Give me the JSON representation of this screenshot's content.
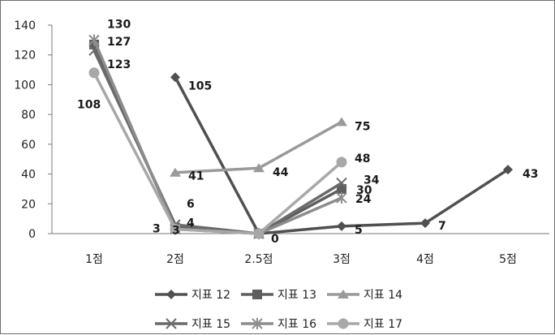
{
  "chart_data": {
    "type": "line",
    "categories": [
      "1점",
      "2점",
      "2.5점",
      "3점",
      "4점",
      "5점"
    ],
    "ylim": [
      0,
      140
    ],
    "yticks": [
      0,
      20,
      40,
      60,
      80,
      100,
      120,
      140
    ],
    "grid": false,
    "legend_position": "bottom",
    "series": [
      {
        "name": "지표 12",
        "marker": "diamond",
        "color": "#505050",
        "values": [
          null,
          105,
          0,
          5,
          7,
          43
        ]
      },
      {
        "name": "지표 13",
        "marker": "square",
        "color": "#5e5e5e",
        "values": [
          127,
          4,
          0,
          30,
          null,
          null
        ]
      },
      {
        "name": "지표 14",
        "marker": "triangle",
        "color": "#9a9a9a",
        "values": [
          null,
          41,
          44,
          75,
          null,
          null
        ]
      },
      {
        "name": "지표 15",
        "marker": "x",
        "color": "#6a6a6a",
        "values": [
          123,
          6,
          0,
          34,
          null,
          null
        ]
      },
      {
        "name": "지표 16",
        "marker": "star",
        "color": "#8c8c8c",
        "values": [
          130,
          3,
          0,
          24,
          null,
          null
        ]
      },
      {
        "name": "지표 17",
        "marker": "circle",
        "color": "#a8a8a8",
        "values": [
          108,
          3,
          0,
          48,
          null,
          null
        ]
      }
    ],
    "data_labels": [
      {
        "text": "130",
        "series": 4,
        "index": 0
      },
      {
        "text": "127",
        "series": 1,
        "index": 0
      },
      {
        "text": "123",
        "series": 3,
        "index": 0
      },
      {
        "text": "108",
        "series": 5,
        "index": 0
      },
      {
        "text": "105",
        "series": 0,
        "index": 1
      },
      {
        "text": "41",
        "series": 2,
        "index": 1
      },
      {
        "text": "6",
        "series": 3,
        "index": 1
      },
      {
        "text": "4",
        "series": 1,
        "index": 1
      },
      {
        "text": "3",
        "series": 4,
        "index": 1
      },
      {
        "text": "3",
        "series": 5,
        "index": 1
      },
      {
        "text": "44",
        "series": 2,
        "index": 2
      },
      {
        "text": "0",
        "series": 0,
        "index": 2
      },
      {
        "text": "75",
        "series": 2,
        "index": 3
      },
      {
        "text": "48",
        "series": 5,
        "index": 3
      },
      {
        "text": "34",
        "series": 3,
        "index": 3
      },
      {
        "text": "30",
        "series": 1,
        "index": 3
      },
      {
        "text": "24",
        "series": 4,
        "index": 3
      },
      {
        "text": "5",
        "series": 0,
        "index": 3
      },
      {
        "text": "7",
        "series": 0,
        "index": 4
      },
      {
        "text": "43",
        "series": 0,
        "index": 5
      }
    ]
  }
}
